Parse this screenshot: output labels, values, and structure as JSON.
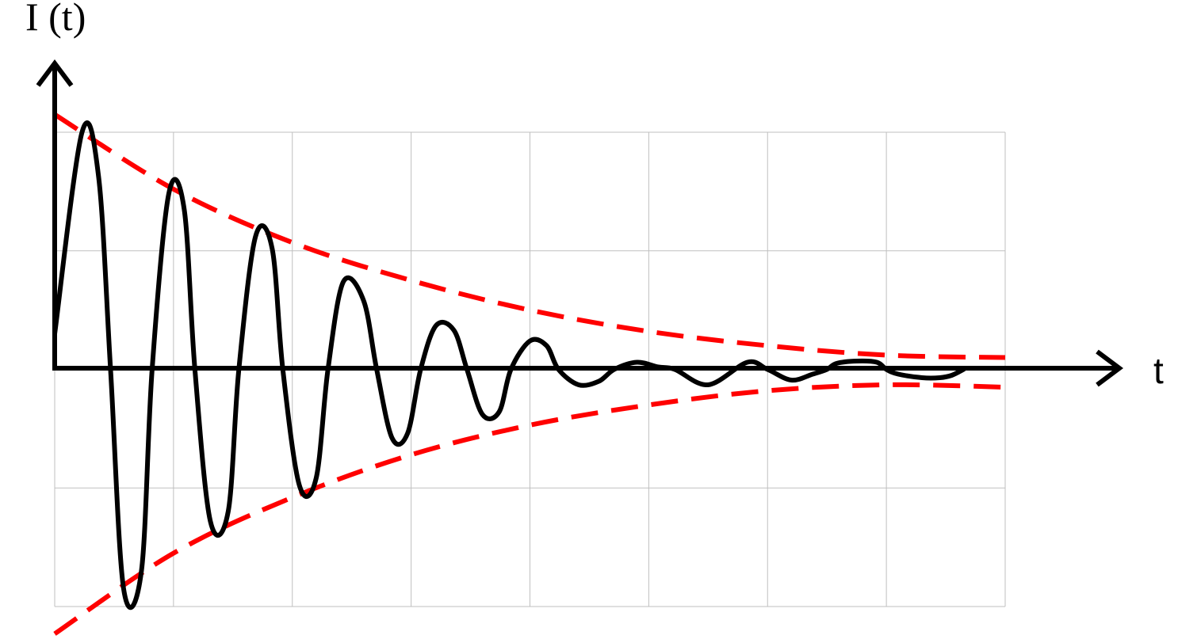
{
  "chart_data": {
    "type": "line",
    "title": "",
    "xlabel": "t",
    "ylabel": "I (t)",
    "xlim": [
      0,
      8
    ],
    "ylim": [
      -2,
      2
    ],
    "grid": true,
    "x_ticks": [
      0,
      1,
      2,
      3,
      4,
      5,
      6,
      7,
      8
    ],
    "y_ticks": [
      -2,
      -1,
      0,
      1,
      2
    ],
    "series": [
      {
        "style": "solid",
        "color": "#000000",
        "points": [
          [
            0,
            0.3
          ],
          [
            0.23,
            2.0
          ],
          [
            0.37,
            1.62
          ],
          [
            0.47,
            0.0
          ],
          [
            0.58,
            -1.85
          ],
          [
            0.73,
            -1.7
          ],
          [
            0.82,
            0.0
          ],
          [
            0.96,
            1.48
          ],
          [
            1.09,
            1.35
          ],
          [
            1.18,
            0.0
          ],
          [
            1.31,
            -1.28
          ],
          [
            1.46,
            -1.2
          ],
          [
            1.55,
            0.0
          ],
          [
            1.69,
            1.12
          ],
          [
            1.83,
            1.02
          ],
          [
            1.92,
            0.0
          ],
          [
            2.06,
            -0.98
          ],
          [
            2.2,
            -0.92
          ],
          [
            2.3,
            0.0
          ],
          [
            2.43,
            0.74
          ],
          [
            2.6,
            0.58
          ],
          [
            2.71,
            0.0
          ],
          [
            2.84,
            -0.58
          ],
          [
            2.97,
            -0.54
          ],
          [
            3.08,
            0.0
          ],
          [
            3.21,
            0.37
          ],
          [
            3.36,
            0.33
          ],
          [
            3.47,
            0.0
          ],
          [
            3.6,
            -0.38
          ],
          [
            3.74,
            -0.36
          ],
          [
            3.84,
            0.0
          ],
          [
            4.0,
            0.24
          ],
          [
            4.14,
            0.2
          ],
          [
            4.24,
            0.0
          ],
          [
            4.41,
            -0.13
          ],
          [
            4.58,
            -0.1
          ],
          [
            4.71,
            0.0
          ],
          [
            4.9,
            0.06
          ],
          [
            5.08,
            0.02
          ],
          [
            5.22,
            0.0
          ],
          [
            5.5,
            -0.13
          ],
          [
            5.83,
            0.06
          ],
          [
            6.0,
            0.0
          ],
          [
            6.2,
            -0.09
          ],
          [
            6.38,
            -0.04
          ],
          [
            6.5,
            0.0
          ],
          [
            6.58,
            0.05
          ],
          [
            6.75,
            0.07
          ],
          [
            6.92,
            0.06
          ],
          [
            7.0,
            0.0
          ],
          [
            7.1,
            -0.04
          ],
          [
            7.3,
            -0.07
          ],
          [
            7.45,
            -0.07
          ],
          [
            7.55,
            -0.05
          ],
          [
            7.65,
            0.0
          ]
        ]
      },
      {
        "style": "dashed",
        "color": "#ff0000",
        "points": [
          [
            0,
            2.15
          ],
          [
            1,
            1.52
          ],
          [
            2,
            1.07
          ],
          [
            3,
            0.75
          ],
          [
            4,
            0.5
          ],
          [
            5,
            0.32
          ],
          [
            6,
            0.2
          ],
          [
            7,
            0.12
          ],
          [
            8,
            0.1
          ]
        ]
      },
      {
        "style": "dashed",
        "color": "#ff0000",
        "points": [
          [
            0,
            -2.23
          ],
          [
            1,
            -1.55
          ],
          [
            2,
            -1.08
          ],
          [
            3,
            -0.72
          ],
          [
            4,
            -0.47
          ],
          [
            5,
            -0.3
          ],
          [
            6,
            -0.18
          ],
          [
            7,
            -0.13
          ],
          [
            8,
            -0.15
          ]
        ]
      }
    ]
  }
}
